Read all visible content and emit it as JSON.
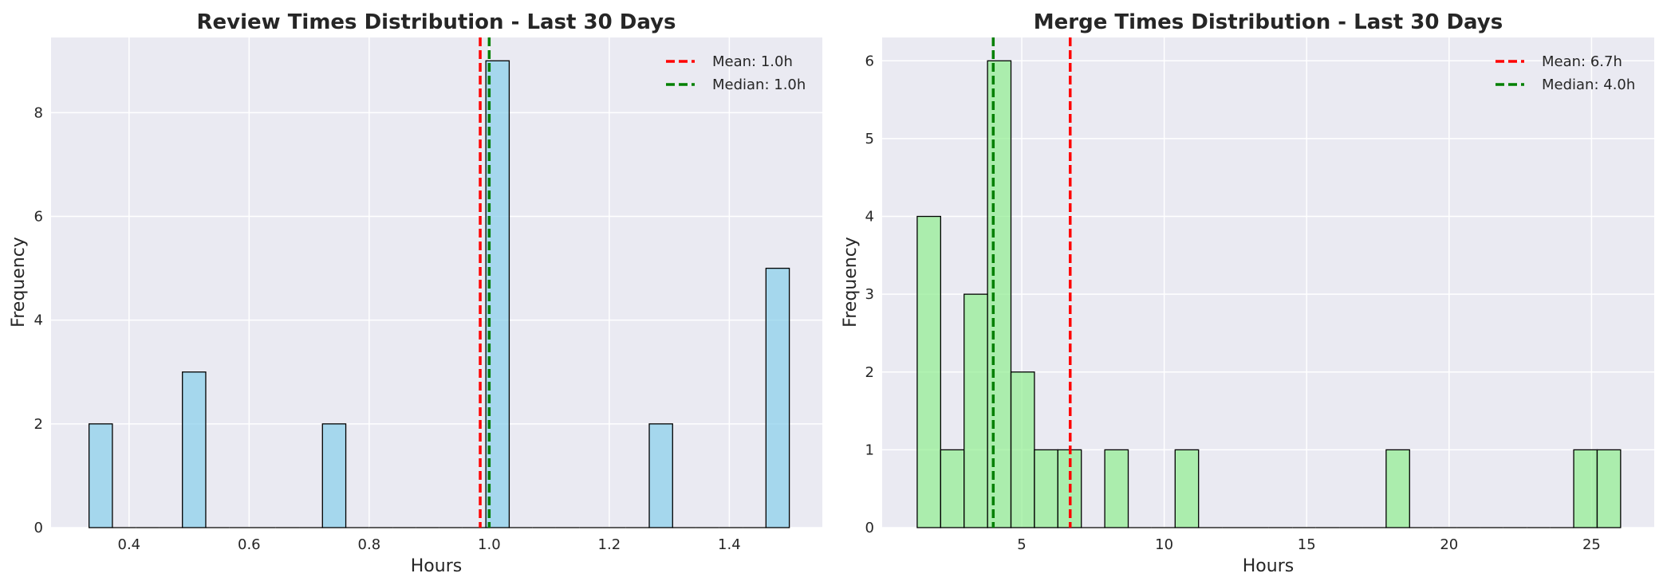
{
  "chart_data": [
    {
      "type": "bar",
      "title": "Review Times Distribution - Last 30 Days",
      "xlabel": "Hours",
      "ylabel": "Frequency",
      "xlim": [
        0.27,
        1.555
      ],
      "ylim": [
        0,
        9.45
      ],
      "xticks": [
        0.4,
        0.6,
        0.8,
        1.0,
        1.2,
        1.4
      ],
      "xtick_labels": [
        "0.4",
        "0.6",
        "0.8",
        "1.0",
        "1.2",
        "1.4"
      ],
      "yticks": [
        0,
        2,
        4,
        6,
        8
      ],
      "ytick_labels": [
        "0",
        "2",
        "4",
        "6",
        "8"
      ],
      "bin_start": 0.3333,
      "bin_width": 0.03889,
      "counts": [
        2,
        0,
        0,
        0,
        3,
        0,
        0,
        0,
        0,
        0,
        2,
        0,
        0,
        0,
        0,
        0,
        0,
        9,
        0,
        0,
        0,
        0,
        0,
        0,
        2,
        0,
        0,
        0,
        0,
        5
      ],
      "bar_color": "#87ceeb",
      "mean_line": {
        "value": 0.985,
        "color": "#ff0000",
        "label": "Mean: 1.0h"
      },
      "median_line": {
        "value": 1.0,
        "color": "#008000",
        "label": "Median: 1.0h"
      },
      "grid": true,
      "legend_position": "top-right"
    },
    {
      "type": "bar",
      "title": "Merge Times Distribution - Last 30 Days",
      "xlabel": "Hours",
      "ylabel": "Frequency",
      "xlim": [
        0.1,
        27.2
      ],
      "ylim": [
        0,
        6.3
      ],
      "xticks": [
        5,
        10,
        15,
        20,
        25
      ],
      "xtick_labels": [
        "5",
        "10",
        "15",
        "20",
        "25"
      ],
      "yticks": [
        0,
        1,
        2,
        3,
        4,
        5,
        6
      ],
      "ytick_labels": [
        "0",
        "1",
        "2",
        "3",
        "4",
        "5",
        "6"
      ],
      "bin_start": 1.33,
      "bin_width": 0.823,
      "counts": [
        4,
        1,
        3,
        6,
        2,
        1,
        1,
        0,
        1,
        0,
        0,
        1,
        0,
        0,
        0,
        0,
        0,
        0,
        0,
        0,
        1,
        0,
        0,
        0,
        0,
        0,
        0,
        0,
        1,
        1
      ],
      "bar_color": "#90ee90",
      "mean_line": {
        "value": 6.7,
        "color": "#ff0000",
        "label": "Mean: 6.7h"
      },
      "median_line": {
        "value": 4.0,
        "color": "#008000",
        "label": "Median: 4.0h"
      },
      "grid": true,
      "legend_position": "top-right"
    }
  ]
}
